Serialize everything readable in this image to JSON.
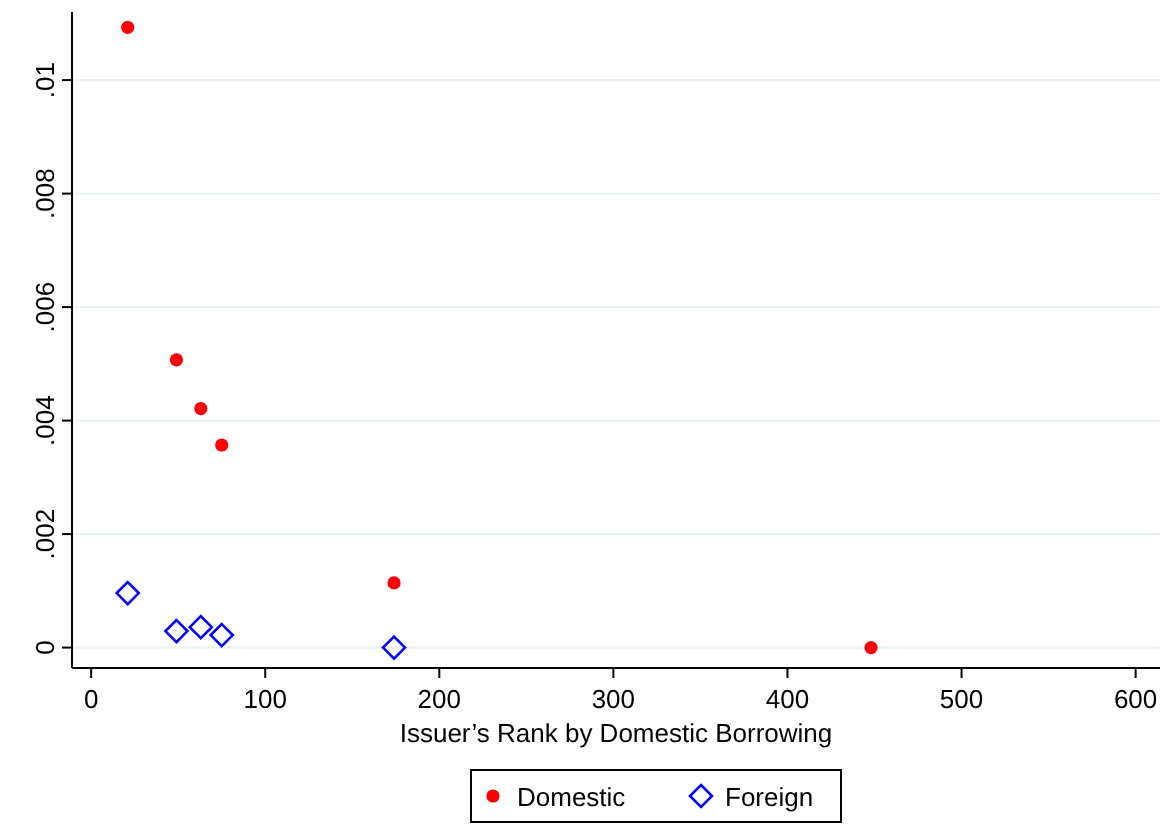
{
  "chart_data": {
    "type": "scatter",
    "xlabel": "Issuer’s Rank by Domestic Borrowing",
    "xlim": [
      -11,
      614
    ],
    "xticks": [
      0,
      100,
      200,
      300,
      400,
      500,
      600
    ],
    "ylim": [
      -0.00036,
      0.0112
    ],
    "yticks": [
      {
        "value": 0,
        "label": "0"
      },
      {
        "value": 0.002,
        "label": ".002"
      },
      {
        "value": 0.004,
        "label": ".004"
      },
      {
        "value": 0.006,
        "label": ".006"
      },
      {
        "value": 0.008,
        "label": ".008"
      },
      {
        "value": 0.01,
        "label": ".01"
      }
    ],
    "grid": "y",
    "legend": "bottom",
    "series": [
      {
        "name": "Domestic",
        "color": "#ff0000",
        "marker": "circle",
        "x": [
          21,
          49,
          63,
          75,
          174,
          448
        ],
        "values": [
          0.01093,
          0.00507,
          0.00421,
          0.00357,
          0.00114,
          0
        ]
      },
      {
        "name": "Foreign",
        "color": "#0000ff",
        "marker": "diamond",
        "x": [
          21,
          49,
          63,
          75,
          174
        ],
        "values": [
          0.00096,
          0.00029,
          0.00036,
          0.00022,
          0
        ]
      }
    ]
  }
}
